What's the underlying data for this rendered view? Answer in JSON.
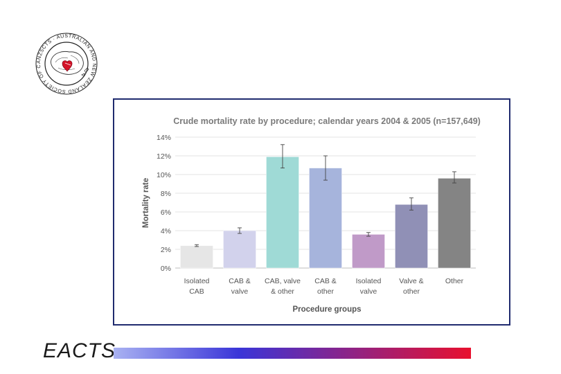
{
  "logo": {
    "text": "ANZSCTS · AUSTRALIAN AND NEW ZEALAND SOCIETY OF CARDIAC AND THORACIC SURGEONS",
    "icon": "society-seal-icon"
  },
  "footer": {
    "brand": "EACTS",
    "gradient_start": "#a9b2f2",
    "gradient_mid": "#3a35d8",
    "gradient_end": "#e8102e"
  },
  "chart_data": {
    "type": "bar",
    "title": "Crude mortality rate by procedure; calendar years 2004 & 2005 (n=157,649)",
    "xlabel": "Procedure groups",
    "ylabel": "Mortality rate",
    "ylim": [
      0,
      14
    ],
    "yticks": [
      "0%",
      "2%",
      "4%",
      "6%",
      "8%",
      "10%",
      "12%",
      "14%"
    ],
    "grid": true,
    "categories": [
      [
        "Isolated",
        "CAB"
      ],
      [
        "CAB &",
        "valve"
      ],
      [
        "CAB, valve",
        "& other"
      ],
      [
        "CAB &",
        "other"
      ],
      [
        "Isolated",
        "valve"
      ],
      [
        "Valve &",
        "other"
      ],
      [
        "Other"
      ]
    ],
    "values": [
      2.4,
      4.0,
      11.9,
      10.7,
      3.6,
      6.8,
      9.6
    ],
    "err_low": [
      2.3,
      3.7,
      10.7,
      9.4,
      3.4,
      6.2,
      9.1
    ],
    "err_high": [
      2.5,
      4.3,
      13.2,
      12.0,
      3.8,
      7.5,
      10.3
    ],
    "colors": [
      "#e6e6e6",
      "#d2d2ec",
      "#9fdad6",
      "#a6b4dc",
      "#c09ac8",
      "#9090b6",
      "#848484"
    ]
  }
}
